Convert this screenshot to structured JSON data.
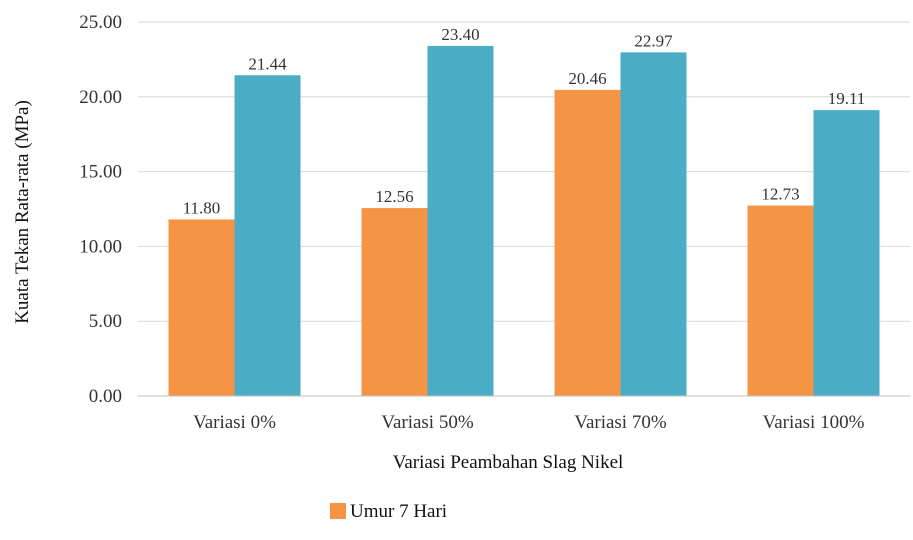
{
  "chart_data": {
    "type": "bar",
    "title": "",
    "xlabel": "Variasi Peambahan Slag Nikel",
    "ylabel": "Kuata Tekan Rata-rata  (MPa)",
    "categories": [
      "Variasi 0%",
      "Variasi 50%",
      "Variasi 70%",
      "Variasi 100%"
    ],
    "series": [
      {
        "name": "Umur 7 Hari",
        "color": "#F59444",
        "values": [
          11.8,
          12.56,
          20.46,
          12.73
        ],
        "labels": [
          "11.80",
          "12.56",
          "20.46",
          "12.73"
        ]
      },
      {
        "name": "",
        "color": "#4BACC6",
        "values": [
          21.44,
          23.4,
          22.97,
          19.11
        ],
        "labels": [
          "21.44",
          "23.40",
          "22.97",
          "19.11"
        ]
      }
    ],
    "ylim": [
      0,
      25
    ],
    "yticks": [
      0,
      5,
      10,
      15,
      20,
      25
    ],
    "ytick_labels": [
      "0.00",
      "5.00",
      "10.00",
      "15.00",
      "20.00",
      "25.00"
    ],
    "grid": true,
    "legend_position": "bottom"
  }
}
